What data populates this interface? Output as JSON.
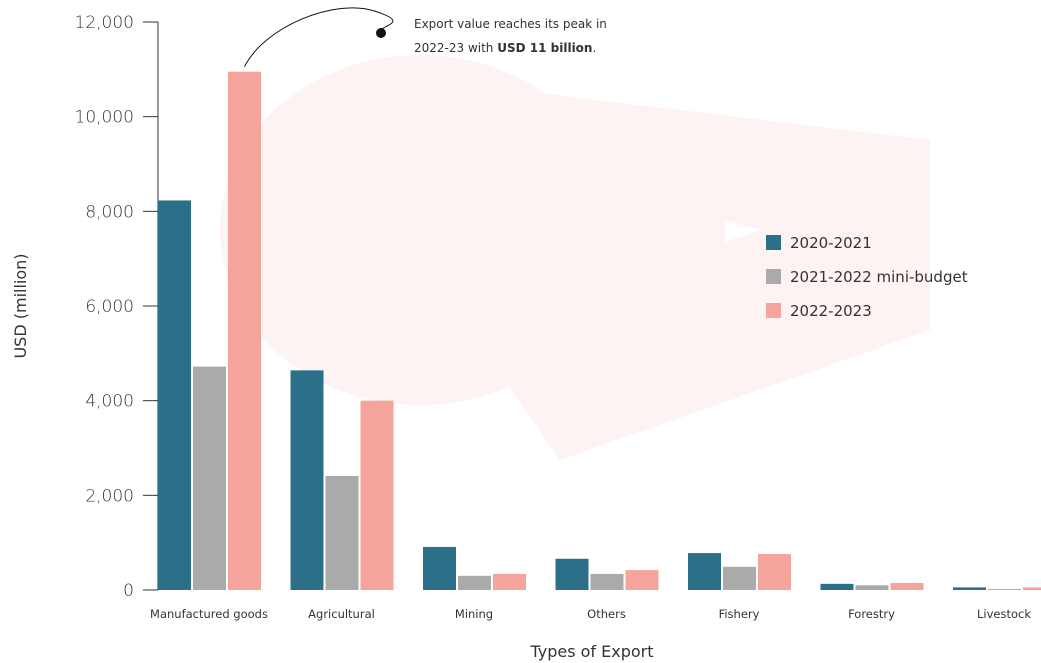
{
  "chart_data": {
    "type": "bar",
    "categories": [
      "Manufactured goods",
      "Agricultural",
      "Mining",
      "Others",
      "Fishery",
      "Forestry",
      "Livestock"
    ],
    "series": [
      {
        "name": "2020-2021",
        "color": "#2b7088",
        "values": [
          8230,
          4640,
          910,
          660,
          780,
          130,
          55
        ]
      },
      {
        "name": "2021-2022 mini-budget",
        "color": "#aaaaaa",
        "values": [
          4720,
          2410,
          300,
          340,
          490,
          100,
          20
        ]
      },
      {
        "name": "2022-2023",
        "color": "#f4a49b",
        "values": [
          10950,
          4000,
          340,
          420,
          760,
          150,
          55
        ]
      }
    ],
    "xlabel": "Types of Export",
    "ylabel": "USD (million)",
    "ylim": [
      0,
      12000
    ],
    "yticks": [
      0,
      2000,
      4000,
      6000,
      8000,
      10000,
      12000
    ],
    "ytick_labels": [
      "0",
      "2,000",
      "4,000",
      "6,000",
      "8,000",
      "10,000",
      "12,000"
    ],
    "grid": false,
    "legend_position": "right",
    "annotation": {
      "line1": "Export value reaches its peak in",
      "line2_prefix": "2022-23 with ",
      "line2_bold": "USD 11 billion",
      "line2_suffix": ".",
      "target_category": "Manufactured goods",
      "target_series": "2022-2023"
    }
  },
  "watermark_color": "#fdf3f3"
}
